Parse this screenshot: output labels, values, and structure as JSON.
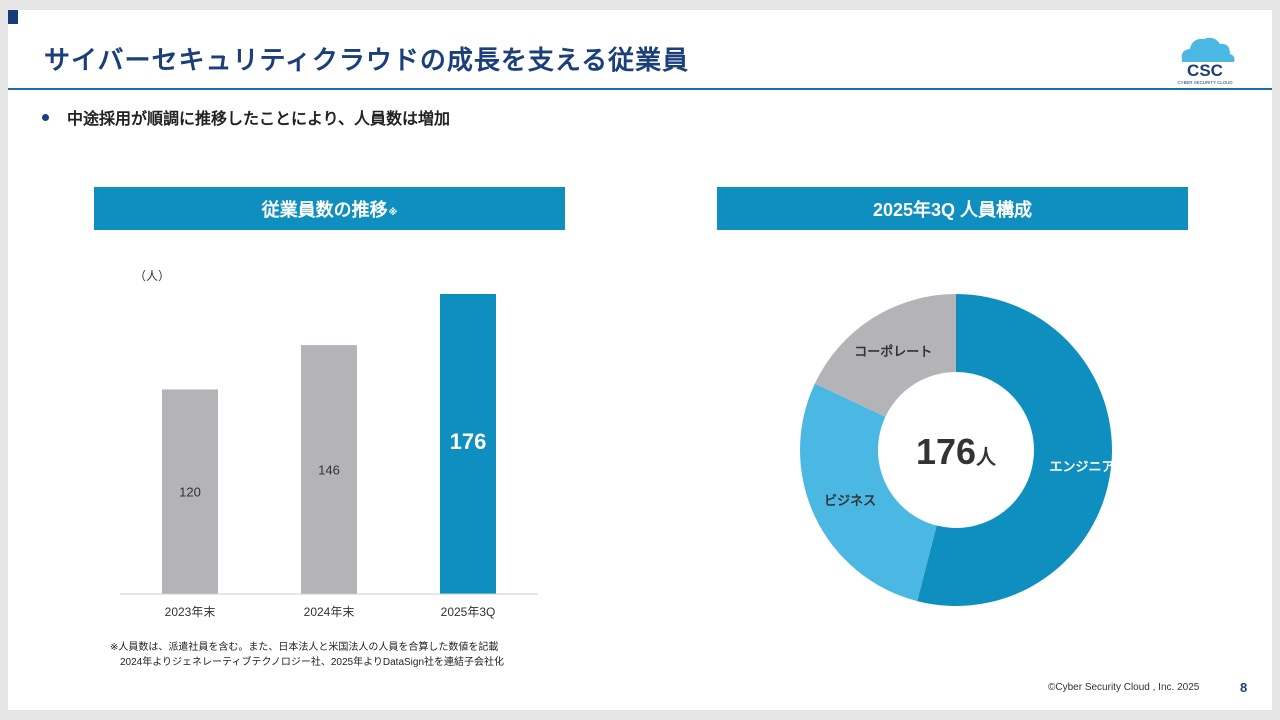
{
  "slide": {
    "title": "サイバーセキュリティクラウドの成長を支える従業員",
    "bullet": "中途採用が順調に推移したことにより、人員数は増加",
    "footnote_line1": "※人員数は、派遣社員を含む。また、日本法人と米国法人の人員を合算した数値を記載",
    "footnote_line2": "2024年よりジェネレーティブテクノロジー社、2025年よりDataSign社を連結子会社化",
    "copyright": "©Cyber Security Cloud , Inc. 2025",
    "page_number": "8"
  },
  "logo": {
    "text": "CSC",
    "subtext": "CYBER SECURITY CLOUD"
  },
  "colors": {
    "primary": "#0f8fbf",
    "gray": "#b4b4b8",
    "light_blue": "#4bb8e4",
    "title": "#1b3f7a"
  },
  "chart_data": [
    {
      "type": "bar",
      "title": "従業員数の推移",
      "title_mark": "※",
      "ylabel": "（人）",
      "categories": [
        "2023年末",
        "2024年末",
        "2025年3Q"
      ],
      "values": [
        120,
        146,
        176
      ],
      "highlight_index": 2,
      "ylim": [
        0,
        176
      ],
      "grid": false
    },
    {
      "type": "pie",
      "title": "2025年3Q 人員構成",
      "center_value": "176",
      "center_unit": "人",
      "total": 176,
      "labels": [
        "エンジニア",
        "ビジネス",
        "コーポレート"
      ],
      "shares": [
        0.54,
        0.28,
        0.18
      ]
    }
  ]
}
